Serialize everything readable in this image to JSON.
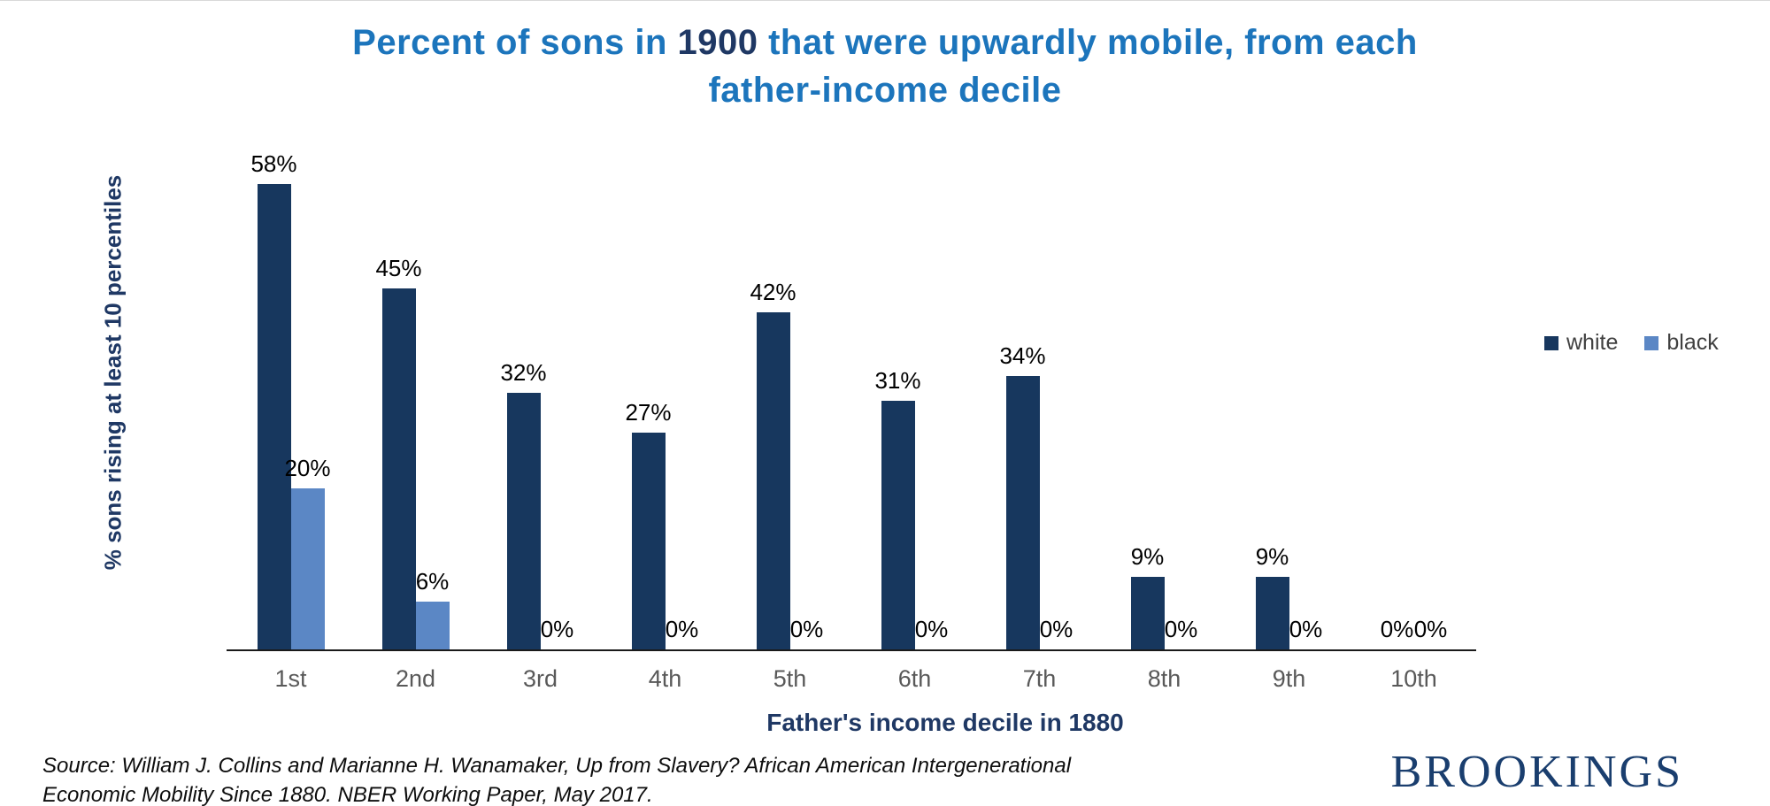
{
  "title_parts": {
    "pre": "Percent of sons in ",
    "year": "1900",
    "post": " that were upwardly mobile, from each father-income decile"
  },
  "chart_data": {
    "type": "bar",
    "title": "Percent of sons in 1900 that were upwardly mobile, from each father-income decile",
    "categories": [
      "1st",
      "2nd",
      "3rd",
      "4th",
      "5th",
      "6th",
      "7th",
      "8th",
      "9th",
      "10th"
    ],
    "series": [
      {
        "name": "white",
        "color": "#17375E",
        "values": [
          58,
          45,
          32,
          27,
          42,
          31,
          34,
          9,
          9,
          0
        ]
      },
      {
        "name": "black",
        "color": "#5B87C5",
        "values": [
          20,
          6,
          0,
          0,
          0,
          0,
          0,
          0,
          0,
          0
        ]
      }
    ],
    "xlabel": "Father's income decile in 1880",
    "ylabel": "% sons rising at least 10 percentiles",
    "ylim": [
      0,
      65
    ],
    "value_suffix": "%",
    "grid": false,
    "legend_position": "right"
  },
  "footer": {
    "source_line1": "Source: William J. Collins and Marianne H. Wanamaker, Up from Slavery? African American Intergenerational",
    "source_line2": "Economic Mobility Since 1880. NBER Working Paper, May 2017.",
    "logo": "BROOKINGS"
  }
}
